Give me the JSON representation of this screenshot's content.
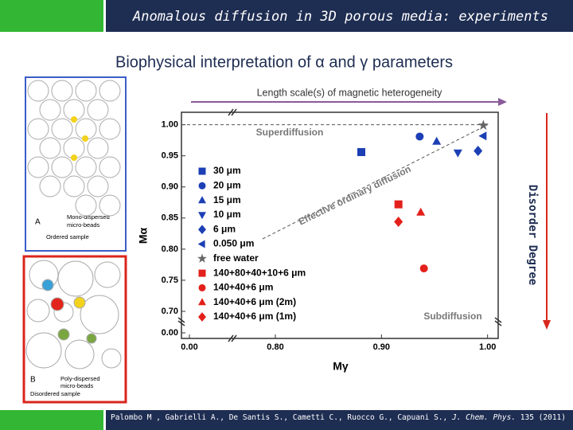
{
  "header": {
    "title": "Anomalous diffusion in 3D porous media: experiments"
  },
  "subtitle": "Biophysical interpretation of α and γ parameters",
  "arrow_label": "Length scale(s) of magnetic heterogeneity",
  "side_label": "Disorder Degree",
  "panels": [
    {
      "letter": "A",
      "label": [
        "Mono-dispersed",
        "micro-beads"
      ],
      "caption": "Ordered sample"
    },
    {
      "letter": "B",
      "label": [
        "Poly-dispersed",
        "micro-beads"
      ],
      "caption": "Disordered sample"
    }
  ],
  "citation": {
    "authors": "Palombo M , Gabrielli A., De Santis S., Cametti C., Ruocco G., Capuani S.,",
    "journal": "J. Chem. Phys.",
    "ref": "135 (2011)"
  },
  "chart_data": {
    "type": "scatter",
    "x_label": "Mγ",
    "y_label": "Mα",
    "xlim": [
      0,
      1.01
    ],
    "ylim": [
      0,
      1.02
    ],
    "xticks": [
      {
        "value": 0,
        "label": "0.00"
      },
      {
        "value": 0.8,
        "label": "0.80"
      },
      {
        "value": 0.9,
        "label": "0.90"
      },
      {
        "value": 1.0,
        "label": "1.00"
      }
    ],
    "yticks": [
      {
        "value": 0,
        "label": "0.00"
      },
      {
        "value": 0.7,
        "label": "0.70"
      },
      {
        "value": 0.75,
        "label": "0.75"
      },
      {
        "value": 0.8,
        "label": "0.80"
      },
      {
        "value": 0.85,
        "label": "0.85"
      },
      {
        "value": 0.9,
        "label": "0.90"
      },
      {
        "value": 0.95,
        "label": "0.95"
      },
      {
        "value": 1.0,
        "label": "1.00"
      }
    ],
    "axis_break": true,
    "annotations": [
      "Superdiffusion",
      "Subdiffusion",
      "Effective ordinary diffusion"
    ],
    "series": [
      {
        "name": "30 μm",
        "color": "#1c3fb5",
        "marker": "square",
        "x": [
          0.881
        ],
        "values": [
          0.956
        ]
      },
      {
        "name": "20 μm",
        "color": "#1c3fb5",
        "marker": "circle",
        "x": [
          0.936
        ],
        "values": [
          0.981
        ]
      },
      {
        "name": "15 μm",
        "color": "#1c3fb5",
        "marker": "triangle-up",
        "x": [
          0.952
        ],
        "values": [
          0.973
        ]
      },
      {
        "name": "10 μm",
        "color": "#1c3fb5",
        "marker": "triangle-down",
        "x": [
          0.972
        ],
        "values": [
          0.955
        ]
      },
      {
        "name": "6 μm",
        "color": "#1c3fb5",
        "marker": "diamond",
        "x": [
          0.991
        ],
        "values": [
          0.958
        ]
      },
      {
        "name": "0.050 μm",
        "color": "#1c3fb5",
        "marker": "triangle-left",
        "x": [
          0.996
        ],
        "values": [
          0.982
        ]
      },
      {
        "name": "free water",
        "color": "#666666",
        "marker": "star",
        "x": [
          0.996
        ],
        "values": [
          0.999
        ]
      },
      {
        "name": "140+80+40+10+6 μm",
        "color": "#e3201b",
        "marker": "square",
        "x": [
          0.916
        ],
        "values": [
          0.872
        ]
      },
      {
        "name": "140+40+6 μm",
        "color": "#e3201b",
        "marker": "circle",
        "x": [
          0.94
        ],
        "values": [
          0.769
        ]
      },
      {
        "name": "140+40+6 μm (2m)",
        "color": "#e3201b",
        "marker": "triangle-up",
        "x": [
          0.937
        ],
        "values": [
          0.859
        ]
      },
      {
        "name": "140+40+6 μm (1m)",
        "color": "#e3201b",
        "marker": "diamond",
        "x": [
          0.916
        ],
        "values": [
          0.844
        ]
      }
    ]
  }
}
